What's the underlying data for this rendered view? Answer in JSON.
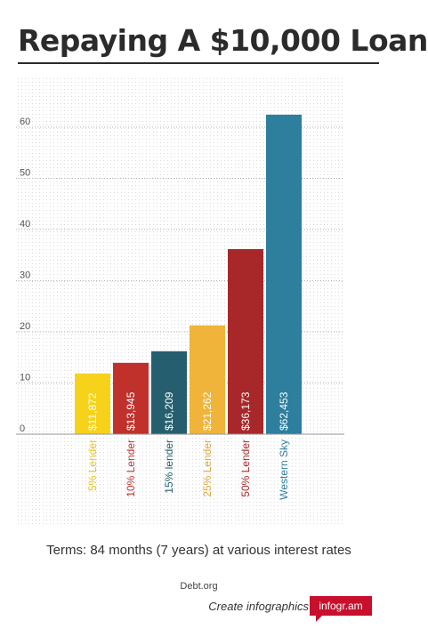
{
  "title": "Repaying A $10,000 Loan",
  "subtitle": "Terms: 84 months (7 years) at various interest rates",
  "source": "Debt.org",
  "credit": {
    "text": "Create infographics",
    "badge": "infogr.am"
  },
  "chart_data": {
    "type": "bar",
    "categories": [
      "5% Lender",
      "10% Lender",
      "15% lender",
      "25% Lender",
      "50% Lender",
      "Western Sky"
    ],
    "values": [
      11.872,
      13.945,
      16.209,
      21.262,
      36.173,
      62.453
    ],
    "value_labels": [
      "$11,872",
      "$13,945",
      "$16,209",
      "$21,262",
      "$36,173",
      "$62,453"
    ],
    "bar_colors": [
      "#f7d21b",
      "#c0312b",
      "#255f6f",
      "#f0b43a",
      "#a8282a",
      "#2e7e9e"
    ],
    "label_colors": [
      "#e8c316",
      "#c0312b",
      "#255f6f",
      "#e0a53a",
      "#a8282a",
      "#2e7e9e"
    ],
    "y_ticks": [
      0,
      10,
      20,
      30,
      40,
      50,
      60
    ],
    "ylim": [
      0,
      60
    ],
    "grid": true
  }
}
